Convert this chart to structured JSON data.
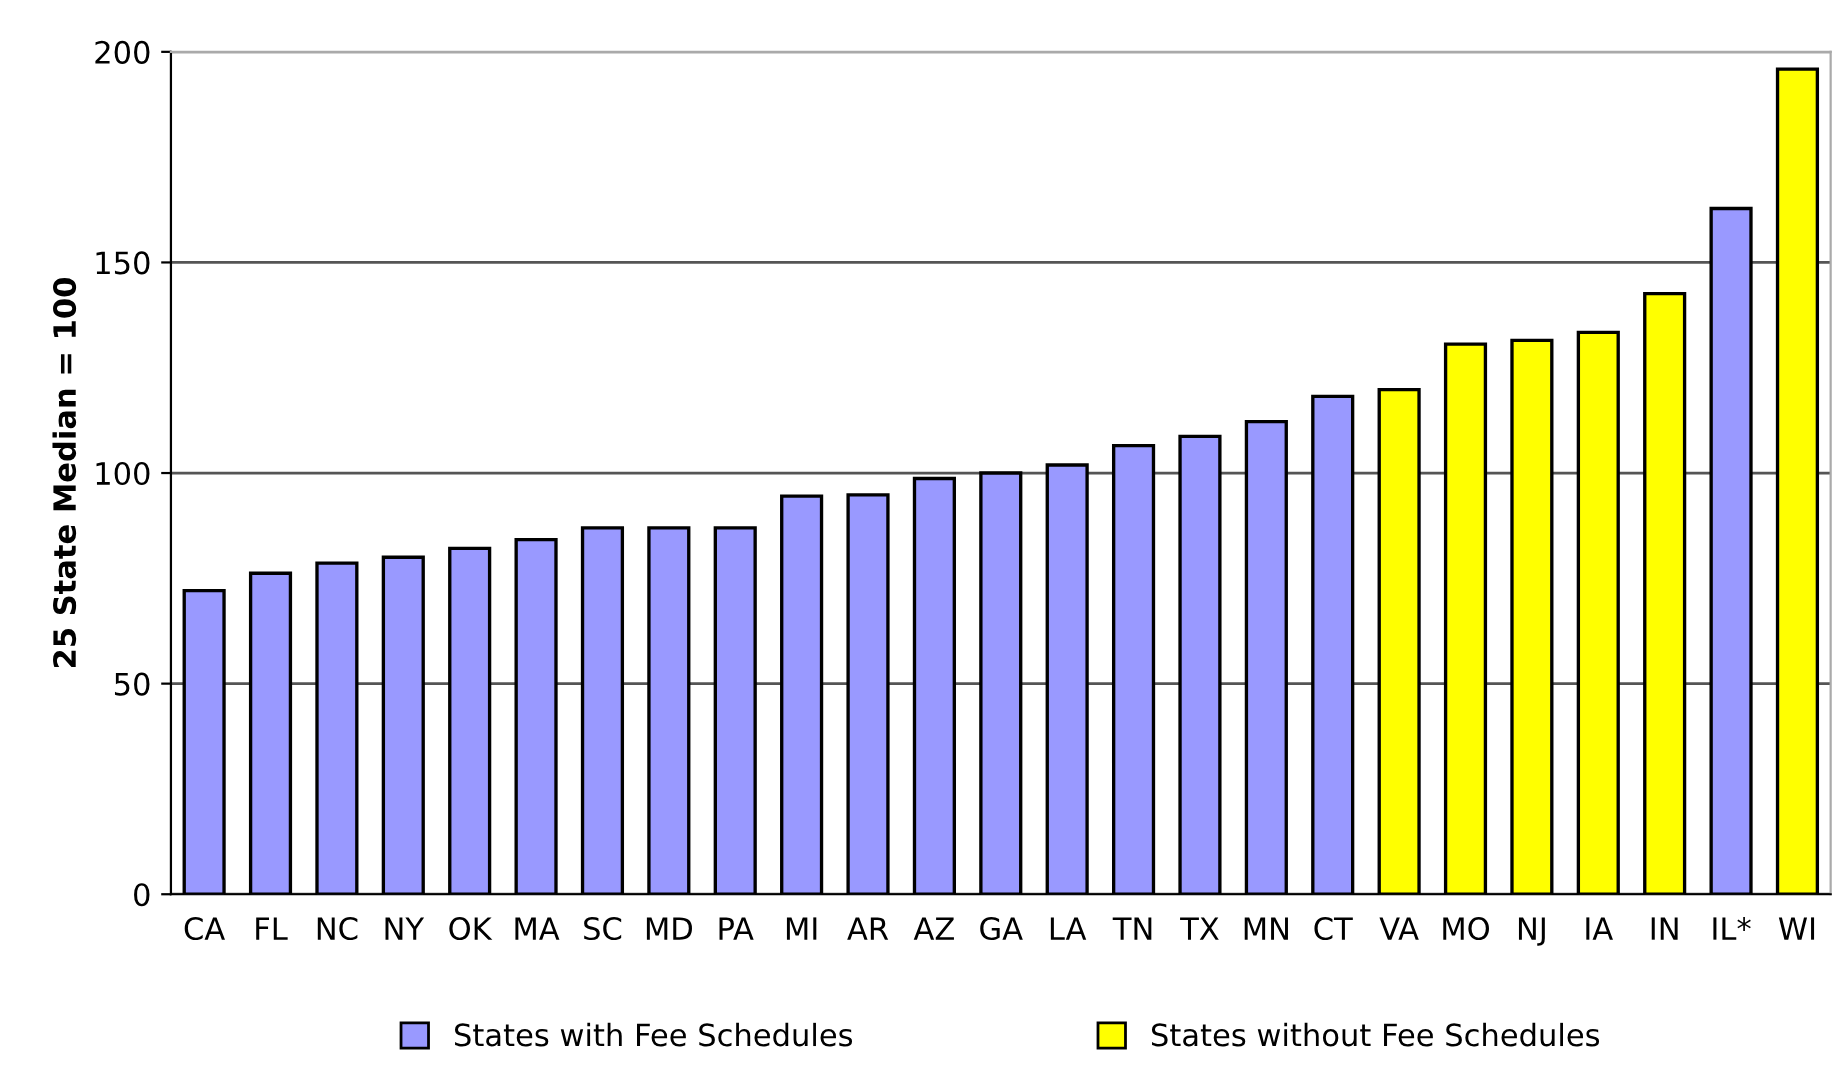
{
  "chart_data": {
    "type": "bar",
    "ylabel": "25 State Median = 100",
    "categories": [
      "CA",
      "FL",
      "NC",
      "NY",
      "OK",
      "MA",
      "SC",
      "MD",
      "PA",
      "MI",
      "AR",
      "AZ",
      "GA",
      "LA",
      "TN",
      "TX",
      "MN",
      "CT",
      "VA",
      "MO",
      "NJ",
      "IA",
      "IN",
      "IL*",
      "WI"
    ],
    "series": [
      {
        "name": "States with Fee Schedules",
        "color": "#9999ff",
        "values": [
          72.1,
          76.2,
          78.6,
          80.0,
          82.1,
          84.2,
          87.0,
          87.0,
          87.0,
          94.5,
          94.8,
          98.7,
          100,
          101.9,
          106.5,
          108.7,
          112.2,
          118.2,
          null,
          null,
          null,
          null,
          null,
          162.8,
          null
        ]
      },
      {
        "name": "States without Fee Schedules",
        "color": "#ffff00",
        "values": [
          null,
          null,
          null,
          null,
          null,
          null,
          null,
          null,
          null,
          null,
          null,
          null,
          null,
          null,
          null,
          null,
          null,
          null,
          119.8,
          130.6,
          131.5,
          133.4,
          142.6,
          null,
          195.9
        ]
      }
    ],
    "ylim": [
      0,
      200
    ],
    "yticks": [
      0,
      50,
      100,
      150,
      200
    ],
    "grid": "y",
    "legend": "bottom"
  }
}
